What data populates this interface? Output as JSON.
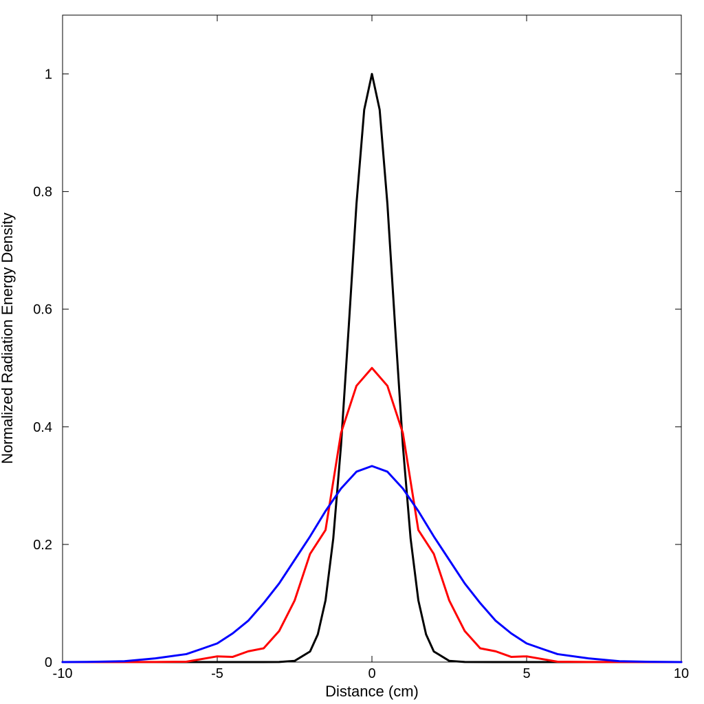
{
  "chart_data": {
    "type": "line",
    "title": "",
    "xlabel": "Distance (cm)",
    "ylabel": "Normalized Radiation Energy Density",
    "xlim": [
      -10,
      10
    ],
    "ylim": [
      0,
      1.1
    ],
    "xticks": [
      -10,
      -5,
      0,
      5,
      10
    ],
    "xtick_labels": [
      "-10",
      "-5",
      "0",
      "5",
      "10"
    ],
    "yticks": [
      0,
      0.2,
      0.4,
      0.6,
      0.8,
      1
    ],
    "ytick_labels": [
      "0",
      "0.2",
      "0.4",
      "0.6",
      "0.8",
      "1"
    ],
    "grid": false,
    "legend": "none",
    "series": [
      {
        "color": "#000000",
        "x": [
          -10,
          -4,
          -3,
          -2.5,
          -2,
          -1.75,
          -1.5,
          -1.25,
          -1,
          -0.75,
          -0.5,
          -0.25,
          0,
          0.25,
          0.5,
          0.75,
          1,
          1.25,
          1.5,
          1.75,
          2,
          2.5,
          3,
          4,
          10
        ],
        "y": [
          0,
          0,
          0.0001,
          0.002,
          0.018,
          0.047,
          0.105,
          0.21,
          0.368,
          0.57,
          0.779,
          0.939,
          1,
          0.939,
          0.779,
          0.57,
          0.368,
          0.21,
          0.105,
          0.047,
          0.018,
          0.002,
          0.0001,
          0,
          0
        ]
      },
      {
        "color": "#ff0000",
        "x": [
          -10,
          -7,
          -6,
          -5,
          -4.5,
          -4,
          -3.5,
          -3,
          -2.5,
          -2,
          -1.5,
          -1,
          -0.5,
          0,
          0.5,
          1,
          1.5,
          2,
          2.5,
          3,
          3.5,
          4,
          4.5,
          5,
          6,
          7,
          10
        ],
        "y": [
          0,
          0.0001,
          0.0006,
          0.0097,
          0.0088,
          0.0183,
          0.0234,
          0.0527,
          0.1045,
          0.1839,
          0.2245,
          0.3894,
          0.4697,
          0.5,
          0.4697,
          0.3894,
          0.2245,
          0.1839,
          0.1045,
          0.0527,
          0.0234,
          0.0183,
          0.0088,
          0.0097,
          0.0006,
          0.0001,
          0
        ]
      },
      {
        "color": "#0000ff",
        "x": [
          -10,
          -9,
          -8,
          -7,
          -6,
          -5.5,
          -5,
          -4.5,
          -4,
          -3.5,
          -3,
          -2.5,
          -2,
          -1.5,
          -1,
          -0.5,
          0,
          0.5,
          1,
          1.5,
          2,
          2.5,
          3,
          3.5,
          4,
          4.5,
          5,
          5.5,
          6,
          7,
          8,
          9,
          10
        ],
        "y": [
          0,
          0.0004,
          0.0014,
          0.0063,
          0.0135,
          0.0225,
          0.0317,
          0.0488,
          0.0702,
          0.1002,
          0.1336,
          0.1736,
          0.2136,
          0.2567,
          0.295,
          0.3237,
          0.3333,
          0.3237,
          0.295,
          0.2567,
          0.2136,
          0.1736,
          0.1336,
          0.1002,
          0.0702,
          0.0488,
          0.0317,
          0.0225,
          0.0135,
          0.0063,
          0.0014,
          0.0004,
          0
        ]
      }
    ]
  }
}
